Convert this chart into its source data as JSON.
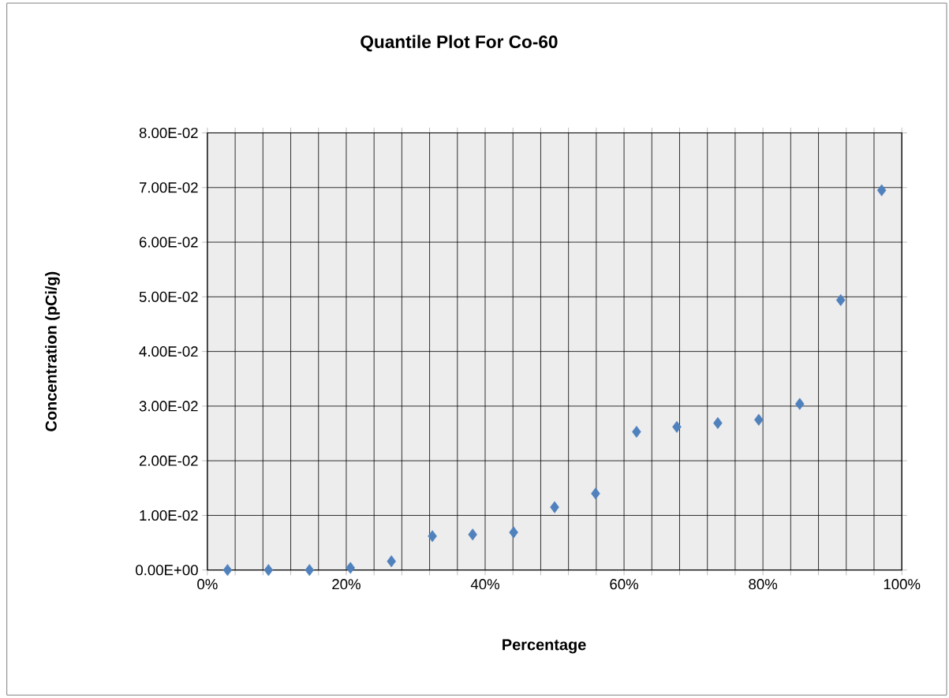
{
  "chart_data": {
    "type": "scatter",
    "title": "Quantile Plot For Co-60",
    "xlabel": "Percentage",
    "ylabel": "Concentration (pCi/g)",
    "x": [
      2.9,
      8.8,
      14.7,
      20.6,
      26.5,
      32.4,
      38.2,
      44.1,
      50.0,
      55.9,
      61.8,
      67.6,
      73.5,
      79.4,
      85.3,
      91.2,
      97.1
    ],
    "series": [
      {
        "color": "#4f81bd",
        "values": [
          0.0,
          0.0,
          0.0,
          0.0004,
          0.0016,
          0.0062,
          0.0065,
          0.0069,
          0.0115,
          0.014,
          0.0253,
          0.0262,
          0.0269,
          0.0275,
          0.0304,
          0.0494,
          0.0695
        ]
      }
    ],
    "xlim": [
      0,
      100
    ],
    "ylim": [
      0,
      0.08
    ],
    "xticks": [
      {
        "value": 0,
        "label": "0%"
      },
      {
        "value": 4,
        "label": null
      },
      {
        "value": 8,
        "label": null
      },
      {
        "value": 12,
        "label": null
      },
      {
        "value": 16,
        "label": null
      },
      {
        "value": 20,
        "label": "20%"
      },
      {
        "value": 24,
        "label": null
      },
      {
        "value": 28,
        "label": null
      },
      {
        "value": 32,
        "label": null
      },
      {
        "value": 36,
        "label": null
      },
      {
        "value": 40,
        "label": "40%"
      },
      {
        "value": 44,
        "label": null
      },
      {
        "value": 48,
        "label": null
      },
      {
        "value": 52,
        "label": null
      },
      {
        "value": 56,
        "label": null
      },
      {
        "value": 60,
        "label": "60%"
      },
      {
        "value": 64,
        "label": null
      },
      {
        "value": 68,
        "label": null
      },
      {
        "value": 72,
        "label": null
      },
      {
        "value": 76,
        "label": null
      },
      {
        "value": 80,
        "label": "80%"
      },
      {
        "value": 84,
        "label": null
      },
      {
        "value": 88,
        "label": null
      },
      {
        "value": 92,
        "label": null
      },
      {
        "value": 96,
        "label": null
      },
      {
        "value": 100,
        "label": "100%"
      }
    ],
    "yticks": [
      {
        "value": 0,
        "label": "0.00E+00"
      },
      {
        "value": 0.01,
        "label": "1.00E-02"
      },
      {
        "value": 0.02,
        "label": "2.00E-02"
      },
      {
        "value": 0.03,
        "label": "3.00E-02"
      },
      {
        "value": 0.04,
        "label": "4.00E-02"
      },
      {
        "value": 0.05,
        "label": "5.00E-02"
      },
      {
        "value": 0.06,
        "label": "6.00E-02"
      },
      {
        "value": 0.07,
        "label": "7.00E-02"
      },
      {
        "value": 0.08,
        "label": "8.00E-02"
      }
    ],
    "grid": true,
    "marker": "diamond"
  }
}
